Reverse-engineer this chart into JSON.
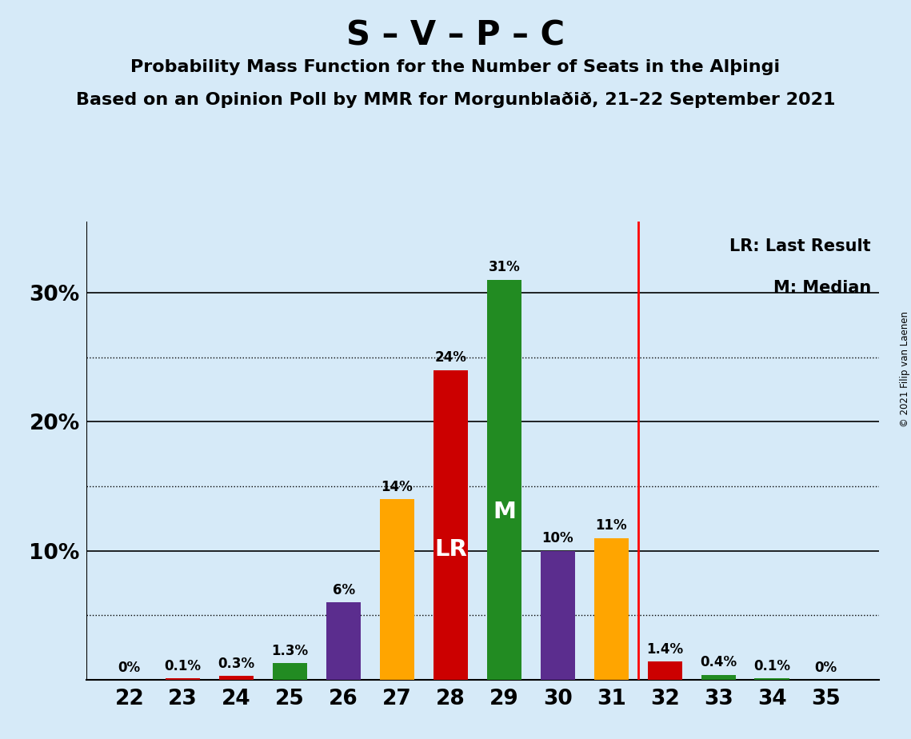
{
  "title": "S – V – P – C",
  "subtitle1": "Probability Mass Function for the Number of Seats in the Alþingi",
  "subtitle2": "Based on an Opinion Poll by MMR for Morgunblaðið, 21–22 September 2021",
  "copyright": "© 2021 Filip van Laenen",
  "seats": [
    22,
    23,
    24,
    25,
    26,
    27,
    28,
    29,
    30,
    31,
    32,
    33,
    34,
    35
  ],
  "values": [
    0.0,
    0.1,
    0.3,
    1.3,
    6.0,
    14.0,
    24.0,
    31.0,
    10.0,
    11.0,
    1.4,
    0.4,
    0.1,
    0.0
  ],
  "colors": [
    "#228B22",
    "#CC0000",
    "#CC0000",
    "#228B22",
    "#5B2D8E",
    "#FFA500",
    "#CC0000",
    "#228B22",
    "#5B2D8E",
    "#FFA500",
    "#CC0000",
    "#228B22",
    "#228B22",
    "#228B22"
  ],
  "labels": [
    "0%",
    "0.1%",
    "0.3%",
    "1.3%",
    "6%",
    "14%",
    "24%",
    "31%",
    "10%",
    "11%",
    "1.4%",
    "0.4%",
    "0.1%",
    "0%"
  ],
  "LR_seat": 28,
  "M_seat": 29,
  "vline_x": 31.5,
  "background_color": "#D6EAF8",
  "solid_yticks": [
    10,
    20,
    30
  ],
  "dotted_yticks": [
    5,
    15,
    25
  ],
  "ytick_labels": {
    "10": "10%",
    "20": "20%",
    "30": "30%"
  },
  "xlim": [
    21.2,
    36.0
  ],
  "ylim": [
    0,
    35.5
  ]
}
